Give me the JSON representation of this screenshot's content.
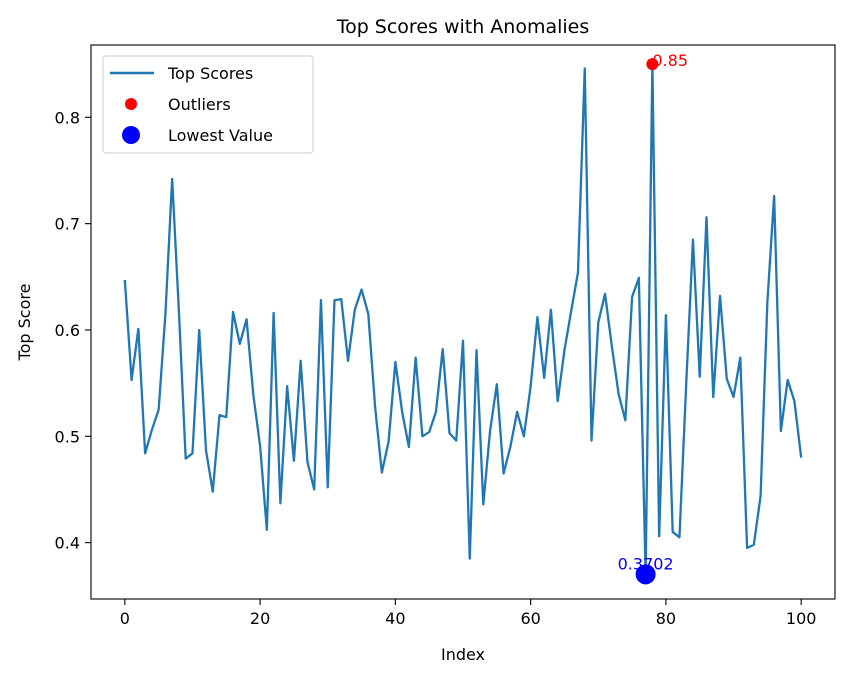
{
  "chart_data": {
    "type": "line",
    "title": "Top Scores with Anomalies",
    "xlabel": "Index",
    "ylabel": "Top Score",
    "xlim": [
      -5,
      105
    ],
    "ylim": [
      0.347,
      0.868
    ],
    "xticks": [
      0,
      20,
      40,
      60,
      80,
      100
    ],
    "yticks": [
      0.4,
      0.5,
      0.6,
      0.7,
      0.8
    ],
    "xtick_labels": [
      "0",
      "20",
      "40",
      "60",
      "80",
      "100"
    ],
    "ytick_labels": [
      "0.4",
      "0.5",
      "0.6",
      "0.7",
      "0.8"
    ],
    "grid": false,
    "legend_position": "top-left",
    "series": [
      {
        "name": "Top Scores",
        "kind": "line",
        "color": "#1f77b4",
        "x": [
          0,
          1,
          2,
          3,
          4,
          5,
          6,
          7,
          8,
          9,
          10,
          11,
          12,
          13,
          14,
          15,
          16,
          17,
          18,
          19,
          20,
          21,
          22,
          23,
          24,
          25,
          26,
          27,
          28,
          29,
          30,
          31,
          32,
          33,
          34,
          35,
          36,
          37,
          38,
          39,
          40,
          41,
          42,
          43,
          44,
          45,
          46,
          47,
          48,
          49,
          50,
          51,
          52,
          53,
          54,
          55,
          56,
          57,
          58,
          59,
          60,
          61,
          62,
          63,
          64,
          65,
          66,
          67,
          68,
          69,
          70,
          71,
          72,
          73,
          74,
          75,
          76,
          77,
          78,
          79,
          80,
          81,
          82,
          83,
          84,
          85,
          86,
          87,
          88,
          89,
          90,
          91,
          92,
          93,
          94,
          95,
          96,
          97,
          98,
          99,
          100
        ],
        "values": [
          0.647,
          0.553,
          0.601,
          0.484,
          0.506,
          0.525,
          0.615,
          0.742,
          0.617,
          0.479,
          0.484,
          0.6,
          0.487,
          0.448,
          0.52,
          0.518,
          0.617,
          0.587,
          0.61,
          0.539,
          0.491,
          0.412,
          0.616,
          0.437,
          0.547,
          0.477,
          0.571,
          0.476,
          0.45,
          0.628,
          0.452,
          0.628,
          0.629,
          0.571,
          0.619,
          0.638,
          0.615,
          0.528,
          0.466,
          0.495,
          0.57,
          0.523,
          0.49,
          0.574,
          0.5,
          0.504,
          0.523,
          0.582,
          0.503,
          0.496,
          0.59,
          0.385,
          0.581,
          0.436,
          0.505,
          0.549,
          0.465,
          0.49,
          0.523,
          0.5,
          0.547,
          0.612,
          0.555,
          0.619,
          0.533,
          0.581,
          0.618,
          0.654,
          0.846,
          0.496,
          0.607,
          0.634,
          0.585,
          0.54,
          0.515,
          0.631,
          0.649,
          0.37,
          0.85,
          0.406,
          0.614,
          0.41,
          0.405,
          0.549,
          0.685,
          0.556,
          0.706,
          0.537,
          0.632,
          0.554,
          0.537,
          0.574,
          0.395,
          0.398,
          0.444,
          0.626,
          0.726,
          0.505,
          0.553,
          0.533,
          0.48
        ]
      },
      {
        "name": "Outliers",
        "kind": "scatter",
        "color": "#ff0000",
        "x": [
          78
        ],
        "values": [
          0.85
        ]
      },
      {
        "name": "Lowest Value",
        "kind": "scatter",
        "color": "#0000ff",
        "x": [
          77
        ],
        "values": [
          0.3702
        ]
      }
    ],
    "annotations": [
      {
        "text": "0.85",
        "x": 78,
        "y": 0.85,
        "color": "#ff0000"
      },
      {
        "text": "0.3702",
        "x": 77,
        "y": 0.3702,
        "color": "#0000ff"
      }
    ]
  }
}
